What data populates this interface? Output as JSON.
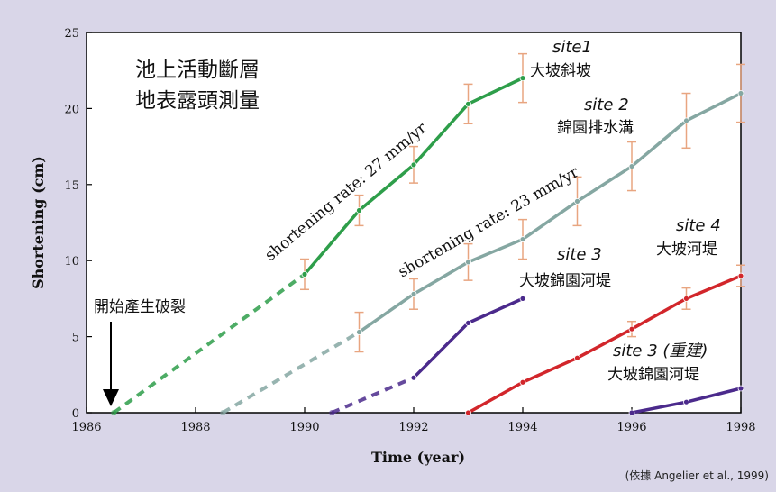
{
  "chart_data": {
    "type": "line",
    "title": "池上活動斷層\n地表露頭測量",
    "xlabel": "Time (year)",
    "ylabel": "Shortening (cm)",
    "xlim": [
      1986,
      1998
    ],
    "ylim": [
      0,
      25
    ],
    "xticks": [
      1986,
      1988,
      1990,
      1992,
      1994,
      1996,
      1998
    ],
    "yticks": [
      0,
      5,
      10,
      15,
      20,
      25
    ],
    "colors": {
      "green": "#2e9e4a",
      "grayteal": "#85a7a2",
      "purple": "#4b2a8c",
      "red": "#d2262b",
      "errorbar": "#e8a580"
    },
    "series": [
      {
        "name": "site1 大坡斜坡",
        "color": "green",
        "x": [
          1990,
          1991,
          1992,
          1993,
          1994
        ],
        "y": [
          9.1,
          13.3,
          16.3,
          20.3,
          22.0
        ],
        "err": [
          1.0,
          1.0,
          1.2,
          1.3,
          1.6
        ],
        "extrapolated": {
          "x": [
            1986.5,
            1990
          ],
          "y": [
            0,
            9.1
          ]
        }
      },
      {
        "name": "site 2 錦園排水溝",
        "color": "grayteal",
        "x": [
          1991,
          1992,
          1993,
          1994,
          1995,
          1996,
          1997,
          1998
        ],
        "y": [
          5.3,
          7.8,
          9.9,
          11.4,
          13.9,
          16.2,
          19.2,
          21.0
        ],
        "err": [
          1.3,
          1.0,
          1.2,
          1.3,
          1.6,
          1.6,
          1.8,
          1.9
        ],
        "extrapolated": {
          "x": [
            1988.5,
            1991
          ],
          "y": [
            0,
            5.3
          ]
        }
      },
      {
        "name": "site 3 大坡錦園河堤",
        "color": "purple",
        "x": [
          1992,
          1993,
          1994
        ],
        "y": [
          2.3,
          5.9,
          7.5
        ],
        "extrapolated": {
          "x": [
            1990.5,
            1992
          ],
          "y": [
            0,
            2.3
          ]
        }
      },
      {
        "name": "site 4 大坡河堤",
        "color": "red",
        "x": [
          1993,
          1994,
          1995,
          1996,
          1997,
          1998
        ],
        "y": [
          0,
          2.0,
          3.6,
          5.5,
          7.5,
          9.0
        ],
        "err": [
          0,
          0,
          0,
          0.5,
          0.7,
          0.7
        ]
      },
      {
        "name": "site 3 (重建) 大坡錦園河堤",
        "color": "purple",
        "x": [
          1996,
          1997,
          1998
        ],
        "y": [
          0,
          0.7,
          1.6
        ]
      }
    ],
    "annotations": {
      "rate1": "shortening rate: 27 mm/yr",
      "rate2": "shortening rate: 23 mm/yr",
      "start": "開始產生破裂",
      "site1_title": "site1",
      "site1_place": "大坡斜坡",
      "site2_title": "site 2",
      "site2_place": "錦園排水溝",
      "site3_title": "site 3",
      "site3_place": "大坡錦園河堤",
      "site4_title": "site 4",
      "site4_place": "大坡河堤",
      "site3r_title": "site 3 (重建)",
      "site3r_place": "大坡錦園河堤"
    },
    "grid": false
  },
  "citation": "(依據 Angelier et al., 1999)"
}
